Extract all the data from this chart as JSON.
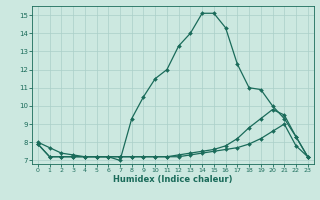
{
  "xlabel": "Humidex (Indice chaleur)",
  "bg_color": "#cce8e0",
  "grid_color": "#aacfc8",
  "line_color": "#1a6b5a",
  "xlim": [
    -0.5,
    23.5
  ],
  "ylim": [
    6.8,
    15.5
  ],
  "yticks": [
    7,
    8,
    9,
    10,
    11,
    12,
    13,
    14,
    15
  ],
  "xticks": [
    0,
    1,
    2,
    3,
    4,
    5,
    6,
    7,
    8,
    9,
    10,
    11,
    12,
    13,
    14,
    15,
    16,
    17,
    18,
    19,
    20,
    21,
    22,
    23
  ],
  "line1_x": [
    0,
    1,
    2,
    3,
    4,
    5,
    6,
    7,
    8,
    9,
    10,
    11,
    12,
    13,
    14,
    15,
    16,
    17,
    18,
    19,
    20,
    21,
    22,
    23
  ],
  "line1_y": [
    8.0,
    7.7,
    7.4,
    7.3,
    7.2,
    7.2,
    7.2,
    7.0,
    9.3,
    10.5,
    11.5,
    12.0,
    13.3,
    14.0,
    15.1,
    15.1,
    14.3,
    12.3,
    11.0,
    10.9,
    10.0,
    9.3,
    8.3,
    7.2
  ],
  "line2_x": [
    0,
    1,
    2,
    3,
    4,
    5,
    6,
    7,
    8,
    9,
    10,
    11,
    12,
    13,
    14,
    15,
    16,
    17,
    18,
    19,
    20,
    21,
    22,
    23
  ],
  "line2_y": [
    7.9,
    7.2,
    7.2,
    7.2,
    7.2,
    7.2,
    7.2,
    7.2,
    7.2,
    7.2,
    7.2,
    7.2,
    7.3,
    7.4,
    7.5,
    7.6,
    7.8,
    8.2,
    8.8,
    9.3,
    9.8,
    9.5,
    8.3,
    7.2
  ],
  "line3_x": [
    0,
    1,
    2,
    3,
    4,
    5,
    6,
    7,
    8,
    9,
    10,
    11,
    12,
    13,
    14,
    15,
    16,
    17,
    18,
    19,
    20,
    21,
    22,
    23
  ],
  "line3_y": [
    7.9,
    7.2,
    7.2,
    7.2,
    7.2,
    7.2,
    7.2,
    7.2,
    7.2,
    7.2,
    7.2,
    7.2,
    7.2,
    7.3,
    7.4,
    7.5,
    7.6,
    7.7,
    7.9,
    8.2,
    8.6,
    9.0,
    7.8,
    7.2
  ]
}
